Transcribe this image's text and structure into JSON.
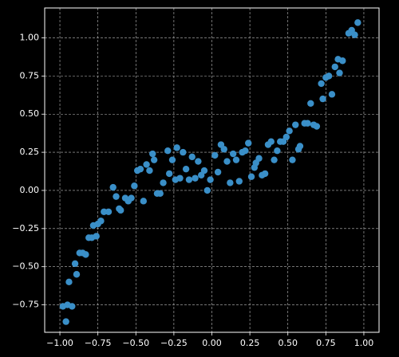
{
  "chart_data": {
    "type": "scatter",
    "color": "#3a8fc8",
    "grid": true,
    "xlim": [
      -1.1,
      1.1
    ],
    "ylim": [
      -0.93,
      1.196
    ],
    "xticks": [
      {
        "value": -1,
        "label": "−1.00"
      },
      {
        "value": -0.75,
        "label": "−0.75"
      },
      {
        "value": -0.5,
        "label": "−0.50"
      },
      {
        "value": -0.25,
        "label": "−0.25"
      },
      {
        "value": 0,
        "label": "0.00"
      },
      {
        "value": 0.25,
        "label": "0.25"
      },
      {
        "value": 0.5,
        "label": "0.50"
      },
      {
        "value": 0.75,
        "label": "0.75"
      },
      {
        "value": 1,
        "label": "1.00"
      }
    ],
    "yticks": [
      {
        "value": -0.75,
        "label": "−0.75"
      },
      {
        "value": -0.5,
        "label": "−0.50"
      },
      {
        "value": -0.25,
        "label": "−0.25"
      },
      {
        "value": 0,
        "label": "0.00"
      },
      {
        "value": 0.25,
        "label": "0.25"
      },
      {
        "value": 0.5,
        "label": "0.50"
      },
      {
        "value": 0.75,
        "label": "0.75"
      },
      {
        "value": 1,
        "label": "1.00"
      }
    ],
    "x": [
      -0.98,
      -0.96,
      -0.95,
      -0.92,
      -0.94,
      -0.9,
      -0.89,
      -0.87,
      -0.85,
      -0.83,
      -0.81,
      -0.79,
      -0.78,
      -0.76,
      -0.75,
      -0.73,
      -0.71,
      -0.68,
      -0.65,
      -0.63,
      -0.61,
      -0.6,
      -0.57,
      -0.55,
      -0.53,
      -0.51,
      -0.49,
      -0.47,
      -0.45,
      -0.43,
      -0.41,
      -0.39,
      -0.38,
      -0.36,
      -0.34,
      -0.32,
      -0.29,
      -0.28,
      -0.26,
      -0.24,
      -0.23,
      -0.21,
      -0.19,
      -0.17,
      -0.15,
      -0.13,
      -0.11,
      -0.09,
      -0.07,
      -0.05,
      -0.03,
      -0.01,
      0.02,
      0.04,
      0.06,
      0.08,
      0.1,
      0.12,
      0.14,
      0.16,
      0.18,
      0.2,
      0.22,
      0.24,
      0.26,
      0.28,
      0.29,
      0.31,
      0.33,
      0.35,
      0.37,
      0.39,
      0.41,
      0.43,
      0.45,
      0.47,
      0.49,
      0.51,
      0.53,
      0.55,
      0.57,
      0.58,
      0.61,
      0.63,
      0.65,
      0.67,
      0.69,
      0.72,
      0.73,
      0.75,
      0.77,
      0.79,
      0.81,
      0.83,
      0.84,
      0.86,
      0.9,
      0.92,
      0.94,
      0.96
    ],
    "values": [
      -0.76,
      -0.86,
      -0.75,
      -0.76,
      -0.6,
      -0.48,
      -0.55,
      -0.41,
      -0.41,
      -0.42,
      -0.31,
      -0.31,
      -0.23,
      -0.3,
      -0.22,
      -0.2,
      -0.14,
      -0.14,
      0.02,
      -0.04,
      -0.12,
      -0.13,
      -0.05,
      -0.07,
      -0.05,
      0.03,
      0.13,
      0.14,
      -0.07,
      0.17,
      0.13,
      0.24,
      0.2,
      -0.02,
      -0.02,
      0.05,
      0.26,
      0.11,
      0.2,
      0.07,
      0.28,
      0.08,
      0.25,
      0.14,
      0.07,
      0.22,
      0.08,
      0.19,
      0.1,
      0.13,
      0.0,
      0.07,
      0.23,
      0.12,
      0.3,
      0.27,
      0.19,
      0.05,
      0.24,
      0.2,
      0.06,
      0.25,
      0.26,
      0.31,
      0.09,
      0.15,
      0.18,
      0.21,
      0.1,
      0.11,
      0.3,
      0.32,
      0.2,
      0.26,
      0.32,
      0.32,
      0.35,
      0.39,
      0.2,
      0.43,
      0.27,
      0.29,
      0.44,
      0.44,
      0.57,
      0.43,
      0.42,
      0.7,
      0.6,
      0.74,
      0.75,
      0.63,
      0.81,
      0.86,
      0.77,
      0.85,
      1.03,
      1.05,
      1.02,
      1.1
    ]
  }
}
